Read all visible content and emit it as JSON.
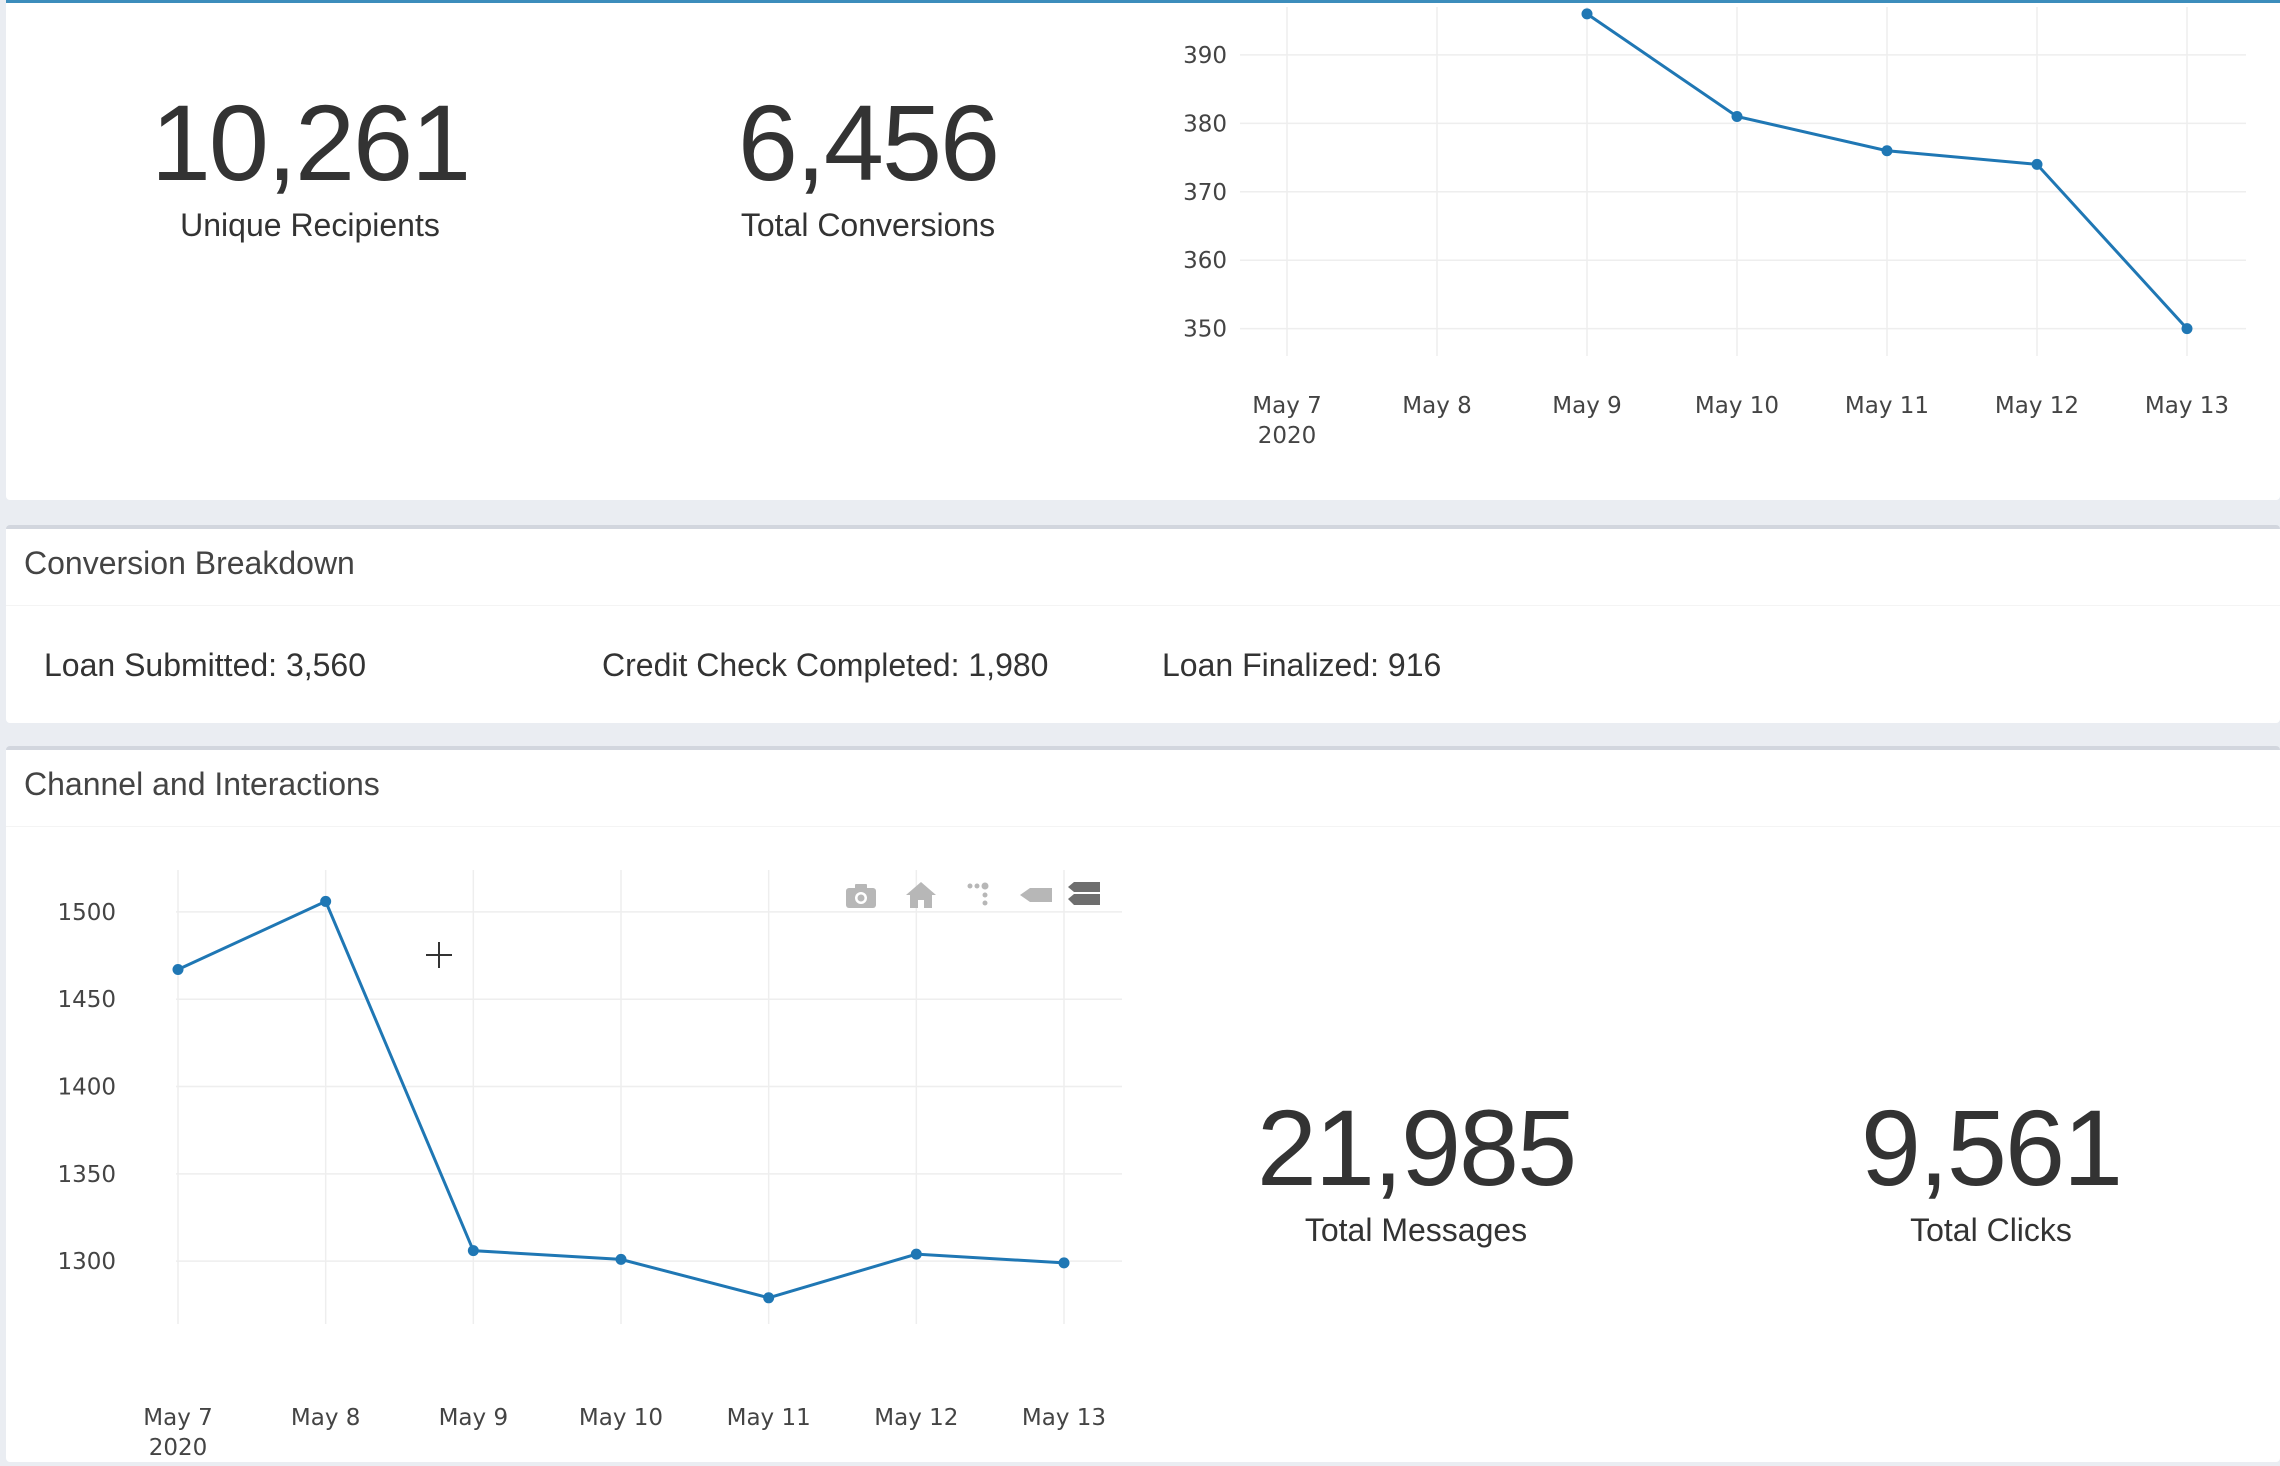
{
  "top_panel": {
    "metrics": [
      {
        "value": "10,261",
        "label": "Unique Recipients"
      },
      {
        "value": "6,456",
        "label": "Total Conversions"
      }
    ]
  },
  "breakdown": {
    "title": "Conversion Breakdown",
    "items": [
      {
        "label": "Loan Submitted: 3,560"
      },
      {
        "label": "Credit Check Completed: 1,980"
      },
      {
        "label": "Loan Finalized: 916"
      }
    ]
  },
  "channel": {
    "title": "Channel and Interactions",
    "metrics": [
      {
        "value": "21,985",
        "label": "Total Messages"
      },
      {
        "value": "9,561",
        "label": "Total Clicks"
      }
    ],
    "toolbar": [
      "camera-icon",
      "home-icon",
      "spike-lines-icon",
      "hover-closest-icon",
      "hover-compare-icon"
    ]
  },
  "colors": {
    "line": "#1f77b4",
    "accent": "#3c8dbc",
    "grid": "#eeeeee"
  },
  "chart_data": [
    {
      "type": "line",
      "x": [
        "May 7",
        "May 8",
        "May 9",
        "May 10",
        "May 11",
        "May 12",
        "May 13"
      ],
      "x_year_label": "2020",
      "series": [
        {
          "values": [
            null,
            null,
            396,
            381,
            376,
            374,
            350
          ]
        }
      ],
      "yticks": [
        350,
        360,
        370,
        380,
        390
      ],
      "ylim": [
        346,
        397
      ],
      "title": "",
      "xlabel": "",
      "ylabel": "",
      "grid": true
    },
    {
      "type": "line",
      "x": [
        "May 7",
        "May 8",
        "May 9",
        "May 10",
        "May 11",
        "May 12",
        "May 13"
      ],
      "x_year_label": "2020",
      "series": [
        {
          "values": [
            1467,
            1506,
            1306,
            1301,
            1279,
            1304,
            1299
          ]
        }
      ],
      "yticks": [
        1300,
        1350,
        1400,
        1450,
        1500
      ],
      "ylim": [
        1264,
        1524
      ],
      "title": "",
      "xlabel": "",
      "ylabel": "",
      "grid": true
    }
  ]
}
